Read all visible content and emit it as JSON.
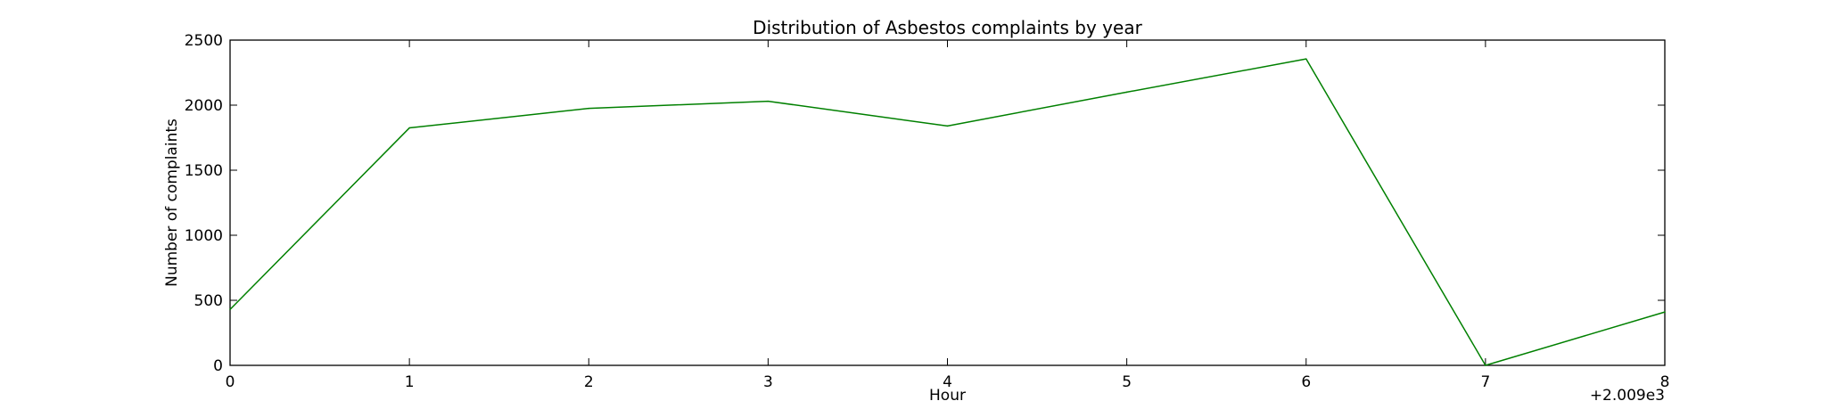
{
  "chart_data": {
    "type": "line",
    "title": "Distribution of  Asbestos complaints by year",
    "xlabel": "Hour",
    "ylabel": "Number of complaints",
    "x_offset_label": "+2.009e3",
    "x": [
      0,
      1,
      2,
      3,
      4,
      5,
      6,
      7,
      8
    ],
    "series": [
      {
        "values": [
          430,
          1825,
          1975,
          2030,
          1840,
          2100,
          2355,
          0,
          410
        ],
        "color": "#008000"
      }
    ],
    "xlim": [
      0,
      8
    ],
    "ylim": [
      0,
      2500
    ],
    "xticks": [
      "0",
      "1",
      "2",
      "3",
      "4",
      "5",
      "6",
      "7",
      "8"
    ],
    "yticks": [
      "0",
      "500",
      "1000",
      "1500",
      "2000",
      "2500"
    ],
    "grid": false
  }
}
